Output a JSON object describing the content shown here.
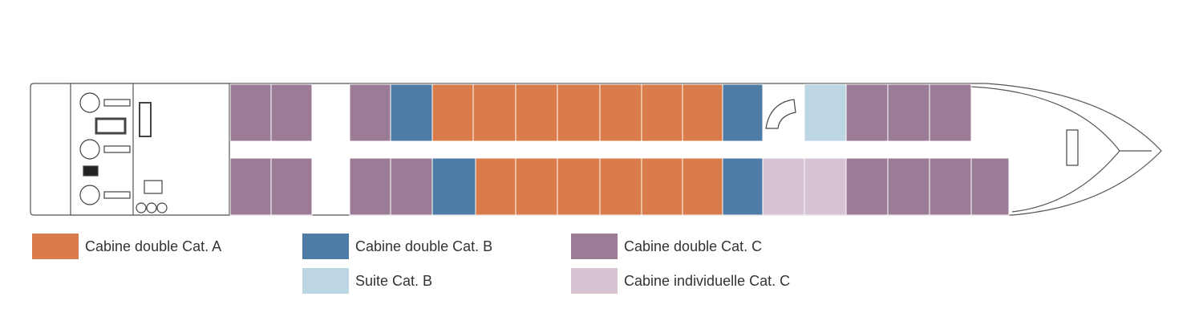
{
  "legend": [
    {
      "label": "Cabine double Cat. A",
      "color": "#d97b4a"
    },
    {
      "label": "Cabine double Cat. B",
      "color": "#4f7ca6"
    },
    {
      "label": "Cabine double Cat. C",
      "color": "#9c7b96"
    },
    {
      "label": "Suite Cat. B",
      "color": "#bcd6e3"
    },
    {
      "label": "Cabine individuelle Cat. C",
      "color": "#d7c3d2"
    }
  ]
}
